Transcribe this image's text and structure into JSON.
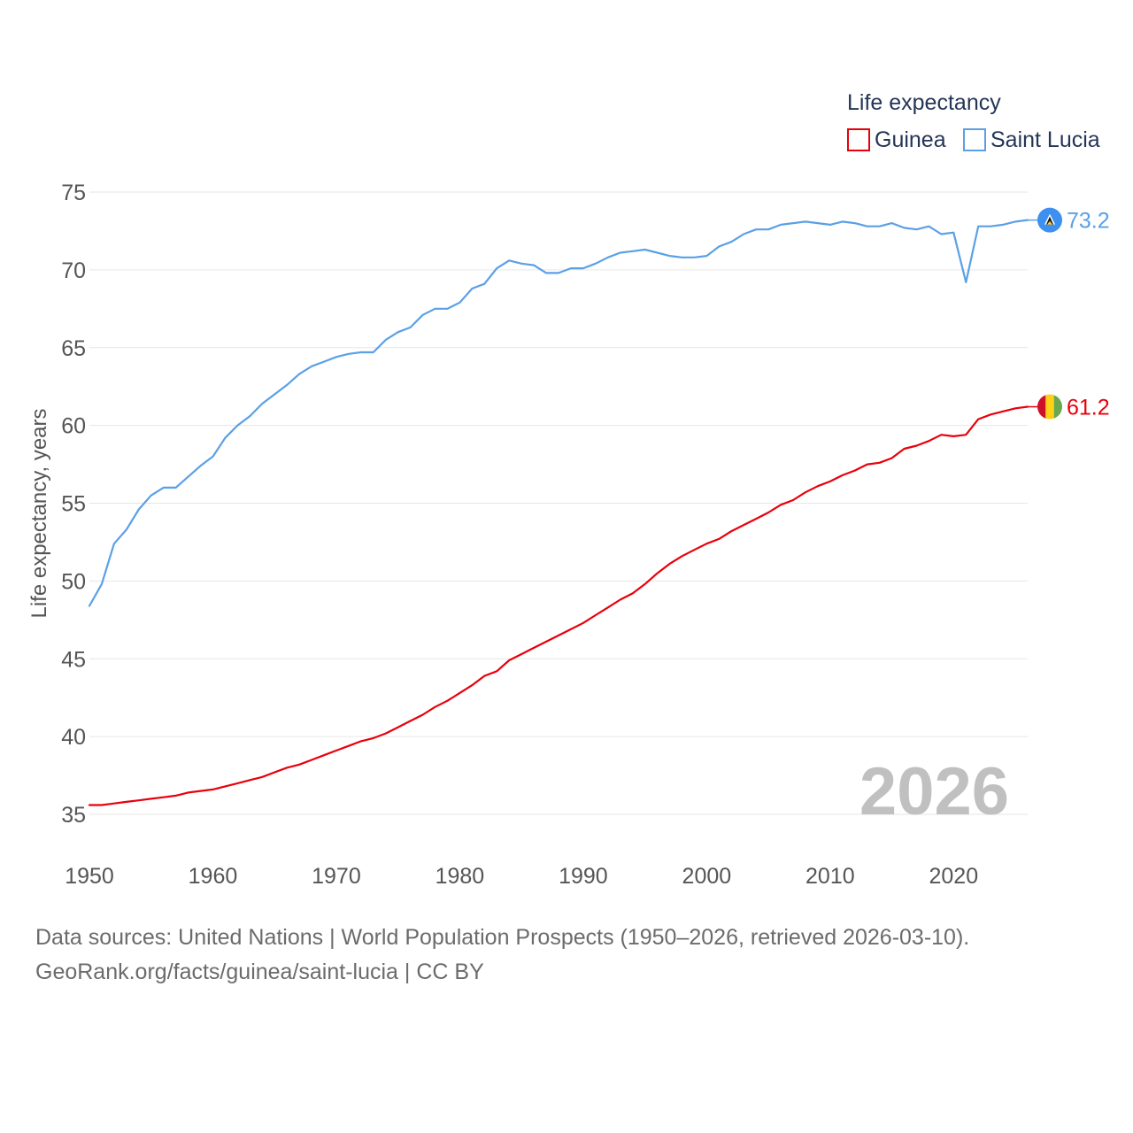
{
  "chart_data": {
    "type": "line",
    "legend_title": "Life expectancy",
    "legend_placement": "top-right",
    "ylabel": "Life expectancy, years",
    "xlabel": "",
    "ylim": [
      35,
      75
    ],
    "xlim": [
      1950,
      2026
    ],
    "y_ticks": [
      35,
      40,
      45,
      50,
      55,
      60,
      65,
      70,
      75
    ],
    "x_ticks": [
      1950,
      1960,
      1970,
      1980,
      1990,
      2000,
      2010,
      2020
    ],
    "grid": true,
    "year_watermark": "2026",
    "series": [
      {
        "name": "Guinea",
        "color": "#e8000b",
        "end_label": "61.2",
        "x": [
          1950,
          1951,
          1952,
          1953,
          1954,
          1955,
          1956,
          1957,
          1958,
          1959,
          1960,
          1961,
          1962,
          1963,
          1964,
          1965,
          1966,
          1967,
          1968,
          1969,
          1970,
          1971,
          1972,
          1973,
          1974,
          1975,
          1976,
          1977,
          1978,
          1979,
          1980,
          1981,
          1982,
          1983,
          1984,
          1985,
          1986,
          1987,
          1988,
          1989,
          1990,
          1991,
          1992,
          1993,
          1994,
          1995,
          1996,
          1997,
          1998,
          1999,
          2000,
          2001,
          2002,
          2003,
          2004,
          2005,
          2006,
          2007,
          2008,
          2009,
          2010,
          2011,
          2012,
          2013,
          2014,
          2015,
          2016,
          2017,
          2018,
          2019,
          2020,
          2021,
          2022,
          2023,
          2024,
          2025,
          2026
        ],
        "values": [
          35.6,
          35.6,
          35.7,
          35.8,
          35.9,
          36.0,
          36.1,
          36.2,
          36.4,
          36.5,
          36.6,
          36.8,
          37.0,
          37.2,
          37.4,
          37.7,
          38.0,
          38.2,
          38.5,
          38.8,
          39.1,
          39.4,
          39.7,
          39.9,
          40.2,
          40.6,
          41.0,
          41.4,
          41.9,
          42.3,
          42.8,
          43.3,
          43.9,
          44.2,
          44.9,
          45.3,
          45.7,
          46.1,
          46.5,
          46.9,
          47.3,
          47.8,
          48.3,
          48.8,
          49.2,
          49.8,
          50.5,
          51.1,
          51.6,
          52.0,
          52.4,
          52.7,
          53.2,
          53.6,
          54.0,
          54.4,
          54.9,
          55.2,
          55.7,
          56.1,
          56.4,
          56.8,
          57.1,
          57.5,
          57.6,
          57.9,
          58.5,
          58.7,
          59.0,
          59.4,
          59.3,
          59.4,
          60.4,
          60.7,
          60.9,
          61.1,
          61.2
        ]
      },
      {
        "name": "Saint Lucia",
        "color": "#5aa0e6",
        "end_label": "73.2",
        "x": [
          1950,
          1951,
          1952,
          1953,
          1954,
          1955,
          1956,
          1957,
          1958,
          1959,
          1960,
          1961,
          1962,
          1963,
          1964,
          1965,
          1966,
          1967,
          1968,
          1969,
          1970,
          1971,
          1972,
          1973,
          1974,
          1975,
          1976,
          1977,
          1978,
          1979,
          1980,
          1981,
          1982,
          1983,
          1984,
          1985,
          1986,
          1987,
          1988,
          1989,
          1990,
          1991,
          1992,
          1993,
          1994,
          1995,
          1996,
          1997,
          1998,
          1999,
          2000,
          2001,
          2002,
          2003,
          2004,
          2005,
          2006,
          2007,
          2008,
          2009,
          2010,
          2011,
          2012,
          2013,
          2014,
          2015,
          2016,
          2017,
          2018,
          2019,
          2020,
          2021,
          2022,
          2023,
          2024,
          2025,
          2026
        ],
        "values": [
          48.4,
          49.8,
          52.4,
          53.3,
          54.6,
          55.5,
          56.0,
          56.0,
          56.7,
          57.4,
          58.0,
          59.2,
          60.0,
          60.6,
          61.4,
          62.0,
          62.6,
          63.3,
          63.8,
          64.1,
          64.4,
          64.6,
          64.7,
          64.7,
          65.5,
          66.0,
          66.3,
          67.1,
          67.5,
          67.5,
          67.9,
          68.8,
          69.1,
          70.1,
          70.6,
          70.4,
          70.3,
          69.8,
          69.8,
          70.1,
          70.1,
          70.4,
          70.8,
          71.1,
          71.2,
          71.3,
          71.1,
          70.9,
          70.8,
          70.8,
          70.9,
          71.5,
          71.8,
          72.3,
          72.6,
          72.6,
          72.9,
          73.0,
          73.1,
          73.0,
          72.9,
          73.1,
          73.0,
          72.8,
          72.8,
          73.0,
          72.7,
          72.6,
          72.8,
          72.3,
          72.4,
          69.2,
          72.8,
          72.8,
          72.9,
          73.1,
          73.2
        ]
      }
    ]
  },
  "source": {
    "line1": "Data sources: United Nations | World Population Prospects (1950–2026, retrieved 2026-03-10).",
    "line2": "GeoRank.org/facts/guinea/saint-lucia | CC BY"
  }
}
